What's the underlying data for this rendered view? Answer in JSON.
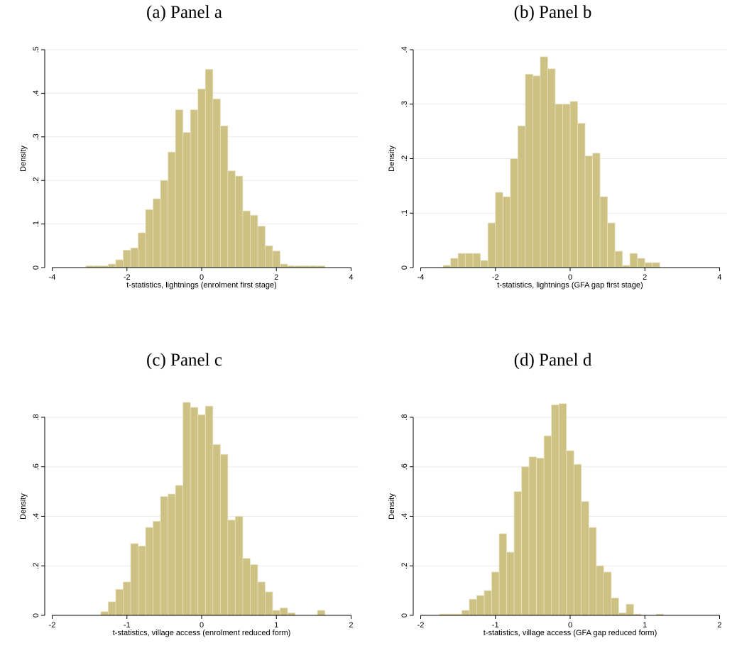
{
  "chart_data": [
    {
      "type": "bar",
      "panel_title": "(a) Panel a",
      "xlabel": "t-statistics, lightnings (enrolment first stage)",
      "ylabel": "Density",
      "xlim": [
        -4.2,
        4.2
      ],
      "ylim": [
        0,
        0.5
      ],
      "xticks": [
        -4,
        -2,
        0,
        2,
        4
      ],
      "xtick_labels": [
        "-4",
        "-2",
        "0",
        "2",
        "4"
      ],
      "yticks": [
        0,
        0.1,
        0.2,
        0.3,
        0.4,
        0.5
      ],
      "ytick_labels": [
        "0",
        ".1",
        ".2",
        ".3",
        ".4",
        ".5"
      ],
      "grid": true,
      "bin_start": -3.1,
      "bin_width": 0.2,
      "values": [
        0.004,
        0.004,
        0.004,
        0.008,
        0.018,
        0.04,
        0.045,
        0.08,
        0.133,
        0.158,
        0.2,
        0.265,
        0.362,
        0.31,
        0.362,
        0.41,
        0.455,
        0.387,
        0.325,
        0.222,
        0.21,
        0.13,
        0.12,
        0.095,
        0.05,
        0.038,
        0.008,
        0.004,
        0.004,
        0.004,
        0.004,
        0.004
      ]
    },
    {
      "type": "bar",
      "panel_title": "(b) Panel b",
      "xlabel": "t-statistics, lightnings (GFA gap first stage)",
      "ylabel": "Density",
      "xlim": [
        -4.2,
        4.2
      ],
      "ylim": [
        0,
        0.4
      ],
      "xticks": [
        -4,
        -2,
        0,
        2,
        4
      ],
      "xtick_labels": [
        "-4",
        "-2",
        "0",
        "2",
        "4"
      ],
      "yticks": [
        0,
        0.1,
        0.2,
        0.3,
        0.4
      ],
      "ytick_labels": [
        "0",
        ".1",
        ".2",
        ".3",
        ".4"
      ],
      "grid": true,
      "bin_start": -3.4,
      "bin_width": 0.2,
      "values": [
        0.004,
        0.017,
        0.026,
        0.026,
        0.026,
        0.013,
        0.082,
        0.138,
        0.13,
        0.2,
        0.26,
        0.355,
        0.352,
        0.387,
        0.365,
        0.3,
        0.3,
        0.305,
        0.265,
        0.205,
        0.21,
        0.13,
        0.082,
        0.03,
        0.004,
        0.026,
        0.017,
        0.009,
        0.009
      ]
    },
    {
      "type": "bar",
      "panel_title": "(c) Panel c",
      "xlabel": "t-statistics, village access (enrolment reduced form)",
      "ylabel": "Density",
      "xlim": [
        -2.1,
        2.1
      ],
      "ylim": [
        0,
        0.88
      ],
      "xticks": [
        -2,
        -1,
        0,
        1,
        2
      ],
      "xtick_labels": [
        "-2",
        "-1",
        "0",
        "1",
        "2"
      ],
      "yticks": [
        0,
        0.2,
        0.4,
        0.6,
        0.8
      ],
      "ytick_labels": [
        "0",
        ".2",
        ".4",
        ".6",
        ".8"
      ],
      "grid": true,
      "bin_start": -1.35,
      "bin_width": 0.1,
      "values": [
        0.015,
        0.055,
        0.105,
        0.135,
        0.29,
        0.28,
        0.355,
        0.38,
        0.48,
        0.49,
        0.525,
        0.86,
        0.84,
        0.81,
        0.845,
        0.69,
        0.65,
        0.385,
        0.4,
        0.23,
        0.205,
        0.135,
        0.095,
        0.02,
        0.03,
        0.01,
        0,
        0,
        0,
        0.02
      ]
    },
    {
      "type": "bar",
      "panel_title": "(d) Panel d",
      "xlabel": "t-statistics, village access (GFA gap reduced form)",
      "ylabel": "Density",
      "xlim": [
        -2.1,
        2.1
      ],
      "ylim": [
        0,
        0.88
      ],
      "xticks": [
        -2,
        -1,
        0,
        1,
        2
      ],
      "xtick_labels": [
        "-2",
        "-1",
        "0",
        "1",
        "2"
      ],
      "yticks": [
        0,
        0.2,
        0.4,
        0.6,
        0.8
      ],
      "ytick_labels": [
        "0",
        ".2",
        ".4",
        ".6",
        ".8"
      ],
      "grid": true,
      "bin_start": -1.75,
      "bin_width": 0.1,
      "values": [
        0.005,
        0.005,
        0.005,
        0.02,
        0.065,
        0.08,
        0.1,
        0.175,
        0.33,
        0.255,
        0.5,
        0.6,
        0.64,
        0.635,
        0.725,
        0.85,
        0.855,
        0.665,
        0.61,
        0.46,
        0.355,
        0.2,
        0.175,
        0.07,
        0.01,
        0.045,
        0.005,
        0,
        0,
        0.005
      ]
    }
  ]
}
